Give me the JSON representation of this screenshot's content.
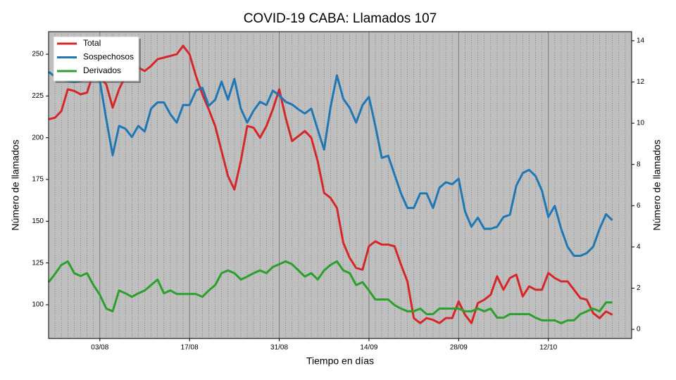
{
  "chart_data": {
    "type": "line",
    "title": "COVID-19 CABA: Llamados 107",
    "xlabel": "Tiempo en días",
    "ylabel": "Número de llamados",
    "y2label": "Número de llamados",
    "categories": [
      null,
      null,
      null,
      null,
      null,
      null,
      null,
      null,
      "03/08",
      null,
      null,
      null,
      null,
      null,
      null,
      null,
      null,
      null,
      null,
      null,
      null,
      null,
      "17/08",
      null,
      null,
      null,
      null,
      null,
      null,
      null,
      null,
      null,
      null,
      null,
      null,
      null,
      "31/08",
      null,
      null,
      null,
      null,
      null,
      null,
      null,
      null,
      null,
      null,
      null,
      null,
      null,
      "14/09",
      null,
      null,
      null,
      null,
      null,
      null,
      null,
      null,
      null,
      null,
      null,
      null,
      null,
      "28/09",
      null,
      null,
      null,
      null,
      null,
      null,
      null,
      null,
      null,
      null,
      null,
      null,
      null,
      "12/10",
      null,
      null,
      null,
      null,
      null,
      null,
      null,
      null,
      null,
      null
    ],
    "ylim": [
      79.8,
      263.5
    ],
    "yticks": [
      100,
      125,
      150,
      175,
      200,
      225,
      250
    ],
    "y2lim": [
      -0.44,
      14.44
    ],
    "y2ticks": [
      0,
      2,
      4,
      6,
      8,
      10,
      12,
      14
    ],
    "x_grid": true,
    "legend": "upper left",
    "series": [
      {
        "name": "Total",
        "color": "#d62728",
        "axis": "y",
        "values": [
          211,
          212,
          216,
          229,
          228,
          226,
          227,
          239,
          236,
          232,
          218,
          229,
          237,
          241,
          242,
          240,
          243,
          247,
          248,
          249,
          250,
          255,
          250,
          237,
          226,
          217,
          207,
          192,
          177,
          169,
          186,
          207,
          206,
          200,
          207,
          217,
          229,
          212,
          198,
          201,
          204,
          200,
          186,
          167,
          164,
          158,
          137,
          128,
          122,
          121,
          135,
          138,
          136,
          136,
          135,
          124,
          114,
          92,
          89,
          92,
          91,
          89,
          92,
          92,
          102,
          94,
          89,
          101,
          103,
          106,
          117,
          109,
          116,
          118,
          105,
          111,
          109,
          109,
          119,
          116,
          114,
          114,
          109,
          104,
          103,
          95,
          92,
          96,
          94
        ]
      },
      {
        "name": "Sospechosos",
        "color": "#1f77b4",
        "axis": "y2",
        "values": [
          12.49,
          12.26,
          12.12,
          12.05,
          11.99,
          12.05,
          12.12,
          12.12,
          12.05,
          10.2,
          8.45,
          9.87,
          9.73,
          9.33,
          9.87,
          9.6,
          10.71,
          11.01,
          11.01,
          10.44,
          10.03,
          10.88,
          10.88,
          11.58,
          11.72,
          10.84,
          11.14,
          12.02,
          11.14,
          12.15,
          10.71,
          10.03,
          10.61,
          11.04,
          10.88,
          11.58,
          11.35,
          11.04,
          10.91,
          10.67,
          10.47,
          10.71,
          9.7,
          8.72,
          10.77,
          12.32,
          11.18,
          10.74,
          10.03,
          10.88,
          11.28,
          9.87,
          8.32,
          8.42,
          7.51,
          6.6,
          5.89,
          5.89,
          6.6,
          6.6,
          5.89,
          6.87,
          7.14,
          7.04,
          7.31,
          5.72,
          4.98,
          5.42,
          4.88,
          4.88,
          4.98,
          5.45,
          5.56,
          6.97,
          7.58,
          7.74,
          7.44,
          6.73,
          5.45,
          5.99,
          4.88,
          4.01,
          3.57,
          3.57,
          3.7,
          4.01,
          4.88,
          5.59,
          5.29
        ]
      },
      {
        "name": "Derivados",
        "color": "#2ca02c",
        "axis": "y2",
        "values": [
          2.29,
          2.69,
          3.13,
          3.3,
          2.73,
          2.59,
          2.73,
          2.15,
          1.68,
          1.01,
          0.88,
          1.89,
          1.75,
          1.58,
          1.75,
          1.89,
          2.15,
          2.42,
          1.75,
          1.89,
          1.72,
          1.72,
          1.72,
          1.72,
          1.58,
          1.89,
          2.15,
          2.73,
          2.86,
          2.73,
          2.42,
          2.56,
          2.73,
          2.86,
          2.73,
          3.03,
          3.16,
          3.3,
          3.16,
          2.86,
          2.56,
          2.73,
          2.42,
          2.86,
          3.13,
          3.3,
          2.86,
          2.73,
          2.15,
          2.29,
          1.89,
          1.45,
          1.45,
          1.45,
          1.18,
          1.01,
          0.88,
          0.88,
          1.01,
          0.74,
          0.74,
          1.01,
          1.01,
          1.01,
          1.01,
          0.88,
          0.88,
          1.01,
          0.88,
          1.01,
          0.57,
          0.57,
          0.74,
          0.74,
          0.74,
          0.74,
          0.57,
          0.44,
          0.44,
          0.44,
          0.3,
          0.44,
          0.44,
          0.74,
          0.88,
          1.01,
          0.88,
          1.31,
          1.31
        ]
      }
    ]
  }
}
